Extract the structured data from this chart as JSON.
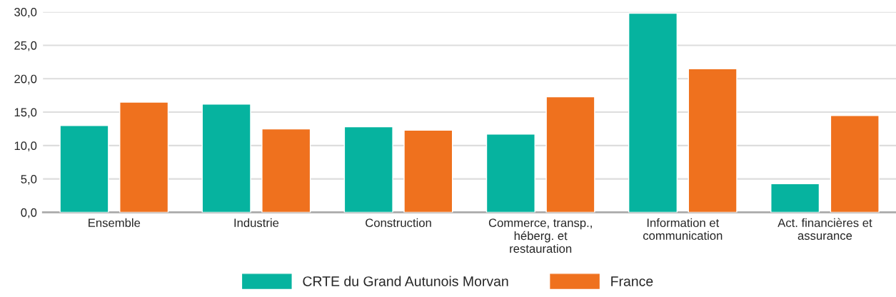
{
  "chart_data": {
    "type": "bar",
    "categories": [
      "Ensemble",
      "Industrie",
      "Construction",
      "Commerce, transp.,\nhéberg. et\nrestauration",
      "Information et\ncommunication",
      "Act. financières et\nassurance"
    ],
    "series": [
      {
        "name": "CRTE du Grand Autunois Morvan",
        "color": "#06b39f",
        "values": [
          13.0,
          16.2,
          12.8,
          11.7,
          29.8,
          4.3
        ]
      },
      {
        "name": "France",
        "color": "#ef711e",
        "values": [
          16.5,
          12.5,
          12.3,
          17.3,
          21.5,
          14.5
        ]
      }
    ],
    "ylim": [
      0,
      30
    ],
    "yticks": [
      {
        "value": 0,
        "label": "0,0"
      },
      {
        "value": 5,
        "label": "5,0"
      },
      {
        "value": 10,
        "label": "10,0"
      },
      {
        "value": 15,
        "label": "15,0"
      },
      {
        "value": 20,
        "label": "20,0"
      },
      {
        "value": 25,
        "label": "25,0"
      },
      {
        "value": 30,
        "label": "30,0"
      }
    ],
    "grid": "y",
    "legend": "bottom"
  }
}
